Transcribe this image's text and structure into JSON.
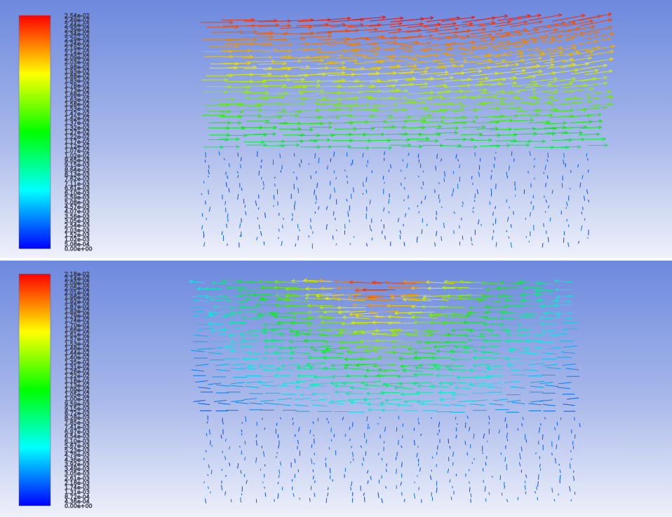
{
  "panels": [
    {
      "id": "top",
      "legend": {
        "labels": [
          "2.54e-02",
          "2.49e-02",
          "2.44e-02",
          "2.39e-02",
          "2.34e-02",
          "2.29e-02",
          "2.24e-02",
          "2.19e-02",
          "2.14e-02",
          "2.09e-02",
          "2.03e-02",
          "1.98e-02",
          "1.93e-02",
          "1.88e-02",
          "1.83e-02",
          "1.78e-02",
          "1.73e-02",
          "1.68e-02",
          "1.63e-02",
          "1.58e-02",
          "1.53e-02",
          "1.47e-02",
          "1.42e-02",
          "1.37e-02",
          "1.32e-02",
          "1.27e-02",
          "1.22e-02",
          "1.17e-02",
          "1.12e-02",
          "1.07e-02",
          "1.02e-02",
          "9.65e-03",
          "9.15e-03",
          "8.64e-03",
          "8.13e-03",
          "7.62e-03",
          "7.11e-03",
          "6.61e-03",
          "6.10e-03",
          "5.59e-03",
          "5.08e-03",
          "4.57e-03",
          "4.07e-03",
          "3.56e-03",
          "3.05e-03",
          "2.54e-03",
          "2.03e-03",
          "1.52e-03",
          "1.02e-03",
          "5.08e-04",
          "0.00e+00"
        ]
      },
      "flow": "right"
    },
    {
      "id": "bottom",
      "legend": {
        "labels": [
          "2.18e-02",
          "2.14e-02",
          "2.09e-02",
          "2.05e-02",
          "2.01e-02",
          "1.96e-02",
          "1.92e-02",
          "1.87e-02",
          "1.83e-02",
          "1.79e-02",
          "1.74e-02",
          "1.70e-02",
          "1.66e-02",
          "1.61e-02",
          "1.57e-02",
          "1.53e-02",
          "1.48e-02",
          "1.44e-02",
          "1.40e-02",
          "1.35e-02",
          "1.31e-02",
          "1.26e-02",
          "1.22e-02",
          "1.18e-02",
          "1.13e-02",
          "1.09e-02",
          "1.05e-02",
          "1.00e-02",
          "9.59e-03",
          "9.15e-03",
          "8.72e-03",
          "8.28e-03",
          "7.85e-03",
          "7.41e-03",
          "6.97e-03",
          "6.54e-03",
          "6.10e-03",
          "5.67e-03",
          "5.23e-03",
          "4.79e-03",
          "4.36e-03",
          "3.92e-03",
          "3.49e-03",
          "3.05e-03",
          "2.61e-03",
          "2.18e-03",
          "1.74e-03",
          "1.31e-03",
          "8.72e-04",
          "4.36e-04",
          "0.00e+00"
        ]
      },
      "flow": "left"
    }
  ]
}
